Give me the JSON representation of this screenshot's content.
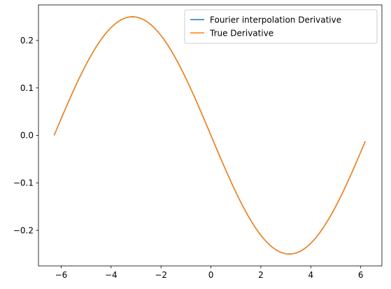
{
  "chart_data": {
    "type": "line",
    "title": "",
    "xlabel": "",
    "ylabel": "",
    "xlim": [
      -6.91,
      6.85
    ],
    "ylim": [
      -0.275,
      0.275
    ],
    "x_ticks": [
      -6,
      -4,
      -2,
      0,
      2,
      4,
      6
    ],
    "x_tick_labels": [
      "−6",
      "−4",
      "−2",
      "0",
      "2",
      "4",
      "6"
    ],
    "y_ticks": [
      -0.2,
      -0.1,
      0.0,
      0.1,
      0.2
    ],
    "y_tick_labels": [
      "−0.2",
      "−0.1",
      "0.0",
      "0.1",
      "0.2"
    ],
    "grid": false,
    "legend_position": "top-right",
    "series": [
      {
        "name": "Fourier interpolation Derivative",
        "color": "#1f77b4",
        "x_start": -6.2832,
        "x_end": 6.185,
        "samples": 129,
        "function": "-0.25*sin(x/2)"
      },
      {
        "name": "True Derivative",
        "color": "#ff7f0e",
        "x_start": -6.2832,
        "x_end": 6.185,
        "samples": 129,
        "function": "-0.25*sin(x/2)"
      }
    ]
  }
}
